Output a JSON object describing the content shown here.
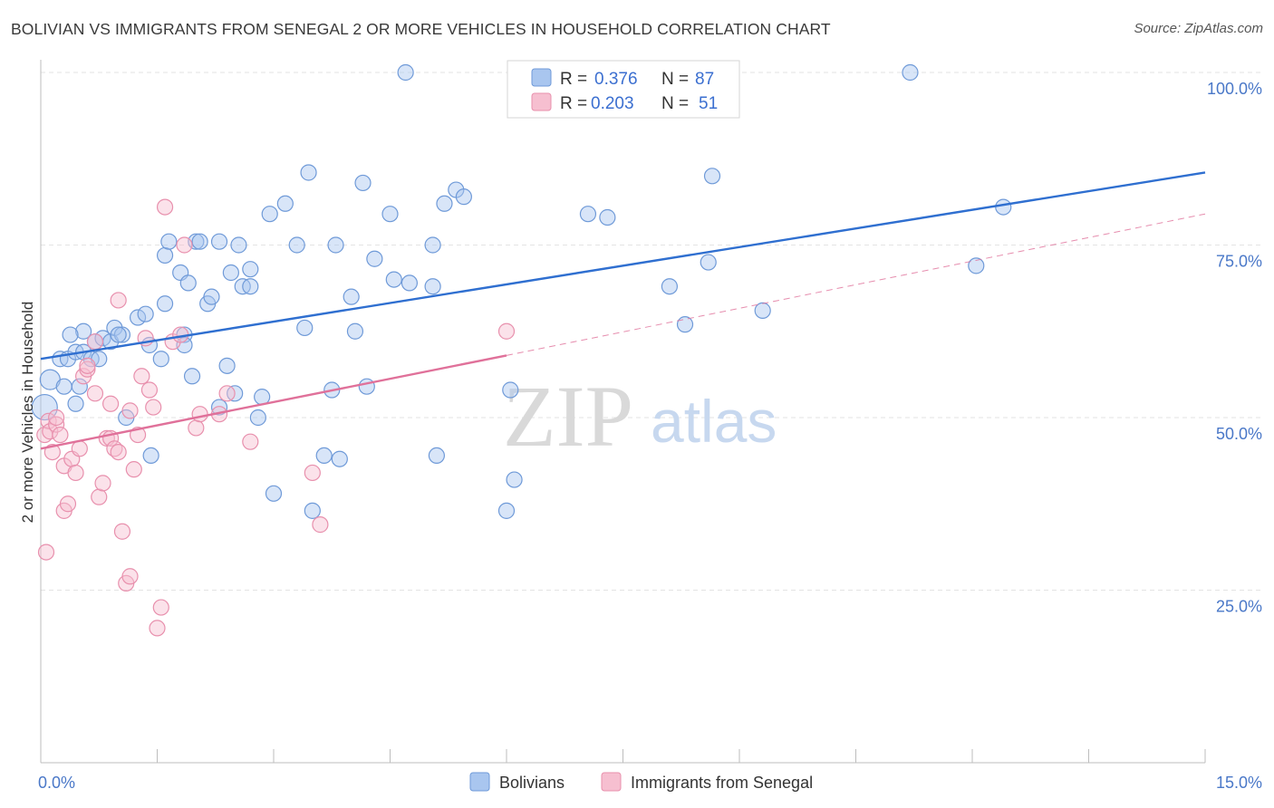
{
  "title": "BOLIVIAN VS IMMIGRANTS FROM SENEGAL 2 OR MORE VEHICLES IN HOUSEHOLD CORRELATION CHART",
  "source": "Source: ZipAtlas.com",
  "watermark": {
    "zip": "ZIP",
    "atlas": "atlas"
  },
  "legend": {
    "items": [
      {
        "r_label": "R =",
        "r_value": "0.376",
        "n_label": "N =",
        "n_value": "87"
      },
      {
        "r_label": "R =",
        "r_value": "0.203",
        "n_label": "N =",
        "n_value": "51"
      }
    ]
  },
  "colors": {
    "blue_fill": "#a9c6ef",
    "blue_stroke": "#6f9ad8",
    "blue_line": "#2f6fd0",
    "pink_fill": "#f6bfd0",
    "pink_stroke": "#e890ad",
    "pink_line": "#e0719a",
    "value_text": "#3b6fd0",
    "grid": "#e3e3e3"
  },
  "chart_data": {
    "type": "scatter",
    "title": "BOLIVIAN VS IMMIGRANTS FROM SENEGAL 2 OR MORE VEHICLES IN HOUSEHOLD CORRELATION CHART",
    "xlabel": "",
    "ylabel": "2 or more Vehicles in Household",
    "xlim": [
      0,
      15
    ],
    "ylim": [
      0,
      102
    ],
    "x_tick_labels": [
      {
        "value": 0,
        "label": "0.0%"
      },
      {
        "value": 15,
        "label": "15.0%"
      }
    ],
    "y_ticks": [
      {
        "value": 100,
        "label": "100.0%"
      },
      {
        "value": 75,
        "label": "75.0%"
      },
      {
        "value": 50,
        "label": "50.0%"
      },
      {
        "value": 25,
        "label": "25.0%"
      }
    ],
    "grid": true,
    "legend_position": "top-center",
    "series": [
      {
        "name": "Bolivians",
        "color": "#6f9ad8",
        "trend": {
          "x": [
            0.0,
            15.0
          ],
          "y": [
            58.5,
            85.5
          ],
          "style": "solid"
        },
        "points": [
          [
            0.05,
            51.5
          ],
          [
            0.12,
            55.5
          ],
          [
            0.25,
            58.5
          ],
          [
            0.35,
            58.5
          ],
          [
            0.45,
            59.5
          ],
          [
            0.55,
            59.5
          ],
          [
            0.3,
            54.5
          ],
          [
            0.5,
            54.5
          ],
          [
            0.45,
            52
          ],
          [
            0.55,
            62.5
          ],
          [
            0.65,
            58.5
          ],
          [
            0.7,
            61
          ],
          [
            0.8,
            61.5
          ],
          [
            0.9,
            61
          ],
          [
            0.95,
            63
          ],
          [
            1.05,
            62
          ],
          [
            1.1,
            50
          ],
          [
            1.25,
            64.5
          ],
          [
            1.35,
            65
          ],
          [
            1.4,
            60.5
          ],
          [
            1.55,
            58.5
          ],
          [
            1.6,
            66.5
          ],
          [
            1.6,
            73.5
          ],
          [
            1.65,
            75.5
          ],
          [
            1.8,
            71
          ],
          [
            1.85,
            62
          ],
          [
            1.85,
            60.5
          ],
          [
            1.9,
            69.5
          ],
          [
            1.95,
            56
          ],
          [
            2.0,
            75.5
          ],
          [
            2.15,
            66.5
          ],
          [
            2.2,
            67.5
          ],
          [
            2.3,
            75.5
          ],
          [
            2.3,
            51.5
          ],
          [
            2.4,
            57.5
          ],
          [
            2.45,
            71
          ],
          [
            2.5,
            53.5
          ],
          [
            2.55,
            75
          ],
          [
            2.6,
            69
          ],
          [
            2.7,
            71.5
          ],
          [
            2.7,
            69
          ],
          [
            2.8,
            50
          ],
          [
            2.85,
            53
          ],
          [
            2.95,
            79.5
          ],
          [
            3.0,
            39
          ],
          [
            3.15,
            81
          ],
          [
            3.3,
            75
          ],
          [
            3.4,
            63
          ],
          [
            3.45,
            85.5
          ],
          [
            3.5,
            36.5
          ],
          [
            3.65,
            44.5
          ],
          [
            3.75,
            54
          ],
          [
            3.8,
            75
          ],
          [
            3.85,
            44
          ],
          [
            4.0,
            67.5
          ],
          [
            4.05,
            62.5
          ],
          [
            4.15,
            84
          ],
          [
            4.2,
            54.5
          ],
          [
            4.3,
            73
          ],
          [
            4.5,
            79.5
          ],
          [
            4.55,
            70
          ],
          [
            4.75,
            69.5
          ],
          [
            5.05,
            75
          ],
          [
            5.05,
            69
          ],
          [
            5.1,
            44.5
          ],
          [
            5.2,
            81
          ],
          [
            5.35,
            83
          ],
          [
            5.45,
            82
          ],
          [
            6.0,
            36.5
          ],
          [
            6.05,
            54
          ],
          [
            6.1,
            41
          ],
          [
            7.05,
            79.5
          ],
          [
            7.3,
            79
          ],
          [
            8.1,
            69
          ],
          [
            8.3,
            63.5
          ],
          [
            8.6,
            72.5
          ],
          [
            8.65,
            85
          ],
          [
            9.3,
            65.5
          ],
          [
            12.05,
            72
          ],
          [
            12.4,
            80.5
          ],
          [
            1.42,
            44.5
          ],
          [
            4.7,
            100
          ],
          [
            11.2,
            100
          ],
          [
            0.75,
            58.5
          ],
          [
            1.0,
            62
          ],
          [
            0.38,
            62
          ],
          [
            2.05,
            75.5
          ]
        ]
      },
      {
        "name": "Immigrants from Senegal",
        "color": "#e890ad",
        "trend": {
          "x": [
            0.0,
            6.0
          ],
          "y": [
            45.5,
            59.0
          ],
          "style": "solid",
          "extension": {
            "x": [
              6.0,
              15.0
            ],
            "y": [
              59.0,
              79.5
            ],
            "style": "dashed"
          }
        },
        "points": [
          [
            0.05,
            47.5
          ],
          [
            0.07,
            30.5
          ],
          [
            0.1,
            49.5
          ],
          [
            0.12,
            48
          ],
          [
            0.15,
            45
          ],
          [
            0.2,
            49
          ],
          [
            0.25,
            47.5
          ],
          [
            0.3,
            43
          ],
          [
            0.3,
            36.5
          ],
          [
            0.35,
            37.5
          ],
          [
            0.4,
            44
          ],
          [
            0.45,
            42
          ],
          [
            0.5,
            45.5
          ],
          [
            0.55,
            56
          ],
          [
            0.6,
            57
          ],
          [
            0.7,
            61
          ],
          [
            0.7,
            53.5
          ],
          [
            0.75,
            38.5
          ],
          [
            0.8,
            40.5
          ],
          [
            0.85,
            47
          ],
          [
            0.9,
            47
          ],
          [
            0.95,
            45.5
          ],
          [
            1.0,
            45
          ],
          [
            1.05,
            33.5
          ],
          [
            1.1,
            26
          ],
          [
            1.15,
            27
          ],
          [
            1.2,
            42.5
          ],
          [
            1.25,
            47.5
          ],
          [
            1.3,
            56
          ],
          [
            1.35,
            61.5
          ],
          [
            1.4,
            54
          ],
          [
            1.45,
            51.5
          ],
          [
            1.5,
            19.5
          ],
          [
            1.55,
            22.5
          ],
          [
            1.6,
            80.5
          ],
          [
            1.7,
            61
          ],
          [
            1.8,
            62
          ],
          [
            1.85,
            75
          ],
          [
            2.0,
            48.5
          ],
          [
            2.05,
            50.5
          ],
          [
            2.3,
            50.5
          ],
          [
            2.4,
            53.5
          ],
          [
            2.7,
            46.5
          ],
          [
            3.5,
            42
          ],
          [
            3.6,
            34.5
          ],
          [
            6.0,
            62.5
          ],
          [
            0.2,
            50
          ],
          [
            1.0,
            67
          ],
          [
            1.15,
            51
          ],
          [
            0.6,
            57.5
          ],
          [
            0.9,
            52
          ]
        ]
      }
    ]
  },
  "bottom_legend": [
    "Bolivians",
    "Immigrants from Senegal"
  ]
}
